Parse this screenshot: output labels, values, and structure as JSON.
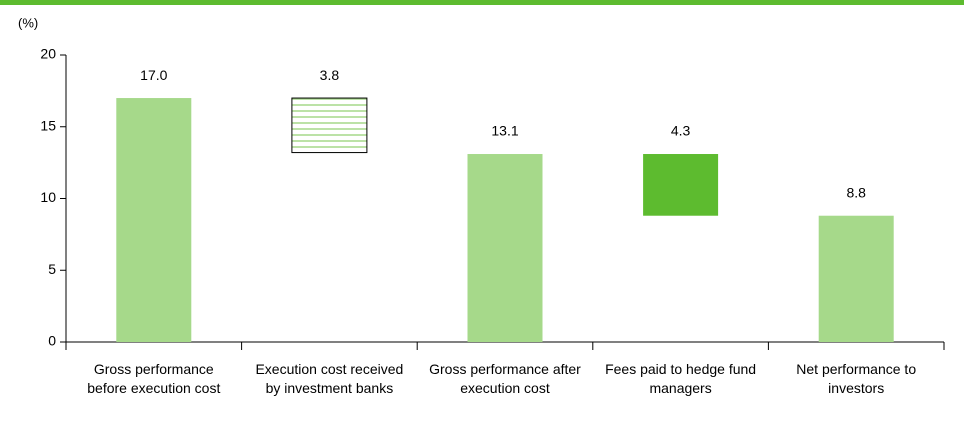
{
  "chart_data": {
    "type": "waterfall",
    "y_unit": "(%)",
    "categories": [
      "Gross performance before execution cost",
      "Execution cost received by investment banks",
      "Gross performance after execution cost",
      "Fees paid to hedge fund managers",
      "Net performance to investors"
    ],
    "values": [
      17.0,
      3.8,
      13.1,
      4.3,
      8.8
    ],
    "value_labels": [
      "17.0",
      "3.8",
      "13.1",
      "4.3",
      "8.8"
    ],
    "measure": [
      "total",
      "decrease",
      "total",
      "decrease",
      "total"
    ],
    "colors": [
      "#a6d98a",
      "hatched",
      "#a6d98a",
      "#5dbb2f",
      "#a6d98a"
    ],
    "ylim": [
      0,
      20
    ],
    "yticks": [
      0,
      5,
      10,
      15,
      20
    ]
  }
}
